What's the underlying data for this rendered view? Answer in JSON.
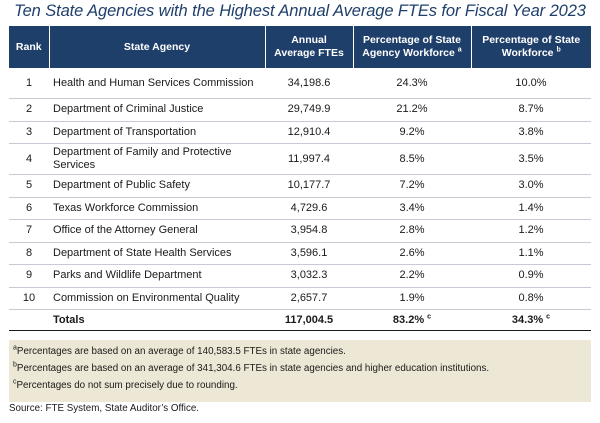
{
  "title": "Ten State Agencies with the Highest Annual Average FTEs for Fiscal Year 2023",
  "header": {
    "rank": "Rank",
    "agency": "State Agency",
    "ftes_line1": "Annual",
    "ftes_line2": "Average FTEs",
    "pct_agency_line1": "Percentage of State",
    "pct_agency_line2": "Agency Workforce",
    "pct_agency_mark": "a",
    "pct_state_line1": "Percentage of State",
    "pct_state_line2": "Workforce",
    "pct_state_mark": "b"
  },
  "rows": [
    {
      "rank": "1",
      "agency": "Health and Human Services Commission",
      "ftes": "34,198.6",
      "pct_agency": "24.3%",
      "pct_state": "10.0%"
    },
    {
      "rank": "2",
      "agency": "Department of Criminal Justice",
      "ftes": "29,749.9",
      "pct_agency": "21.2%",
      "pct_state": "8.7%"
    },
    {
      "rank": "3",
      "agency": "Department of Transportation",
      "ftes": "12,910.4",
      "pct_agency": "9.2%",
      "pct_state": "3.8%"
    },
    {
      "rank": "4",
      "agency": "Department of Family and Protective Services",
      "ftes": "11,997.4",
      "pct_agency": "8.5%",
      "pct_state": "3.5%"
    },
    {
      "rank": "5",
      "agency": "Department of Public Safety",
      "ftes": "10,177.7",
      "pct_agency": "7.2%",
      "pct_state": "3.0%"
    },
    {
      "rank": "6",
      "agency": "Texas Workforce Commission",
      "ftes": "4,729.6",
      "pct_agency": "3.4%",
      "pct_state": "1.4%"
    },
    {
      "rank": "7",
      "agency": "Office of the Attorney General",
      "ftes": "3,954.8",
      "pct_agency": "2.8%",
      "pct_state": "1.2%"
    },
    {
      "rank": "8",
      "agency": "Department of State Health Services",
      "ftes": "3,596.1",
      "pct_agency": "2.6%",
      "pct_state": "1.1%"
    },
    {
      "rank": "9",
      "agency": "Parks and Wildlife Department",
      "ftes": "3,032.3",
      "pct_agency": "2.2%",
      "pct_state": "0.9%"
    },
    {
      "rank": "10",
      "agency": "Commission on Environmental Quality",
      "ftes": "2,657.7",
      "pct_agency": "1.9%",
      "pct_state": "0.8%"
    }
  ],
  "totals": {
    "label": "Totals",
    "ftes": "117,004.5",
    "pct_agency": "83.2%",
    "pct_agency_mark": "c",
    "pct_state": "34.3%",
    "pct_state_mark": "c"
  },
  "notes": [
    {
      "mark": "a",
      "text": "Percentages are based on an average of 140,583.5 FTEs in state agencies."
    },
    {
      "mark": "b",
      "text": "Percentages are based on an average of 341,304.6 FTEs in state agencies and higher education institutions."
    },
    {
      "mark": "c",
      "text": "Percentages do not sum precisely due to rounding."
    }
  ],
  "source": "Source: FTE System, State Auditor’s Office."
}
